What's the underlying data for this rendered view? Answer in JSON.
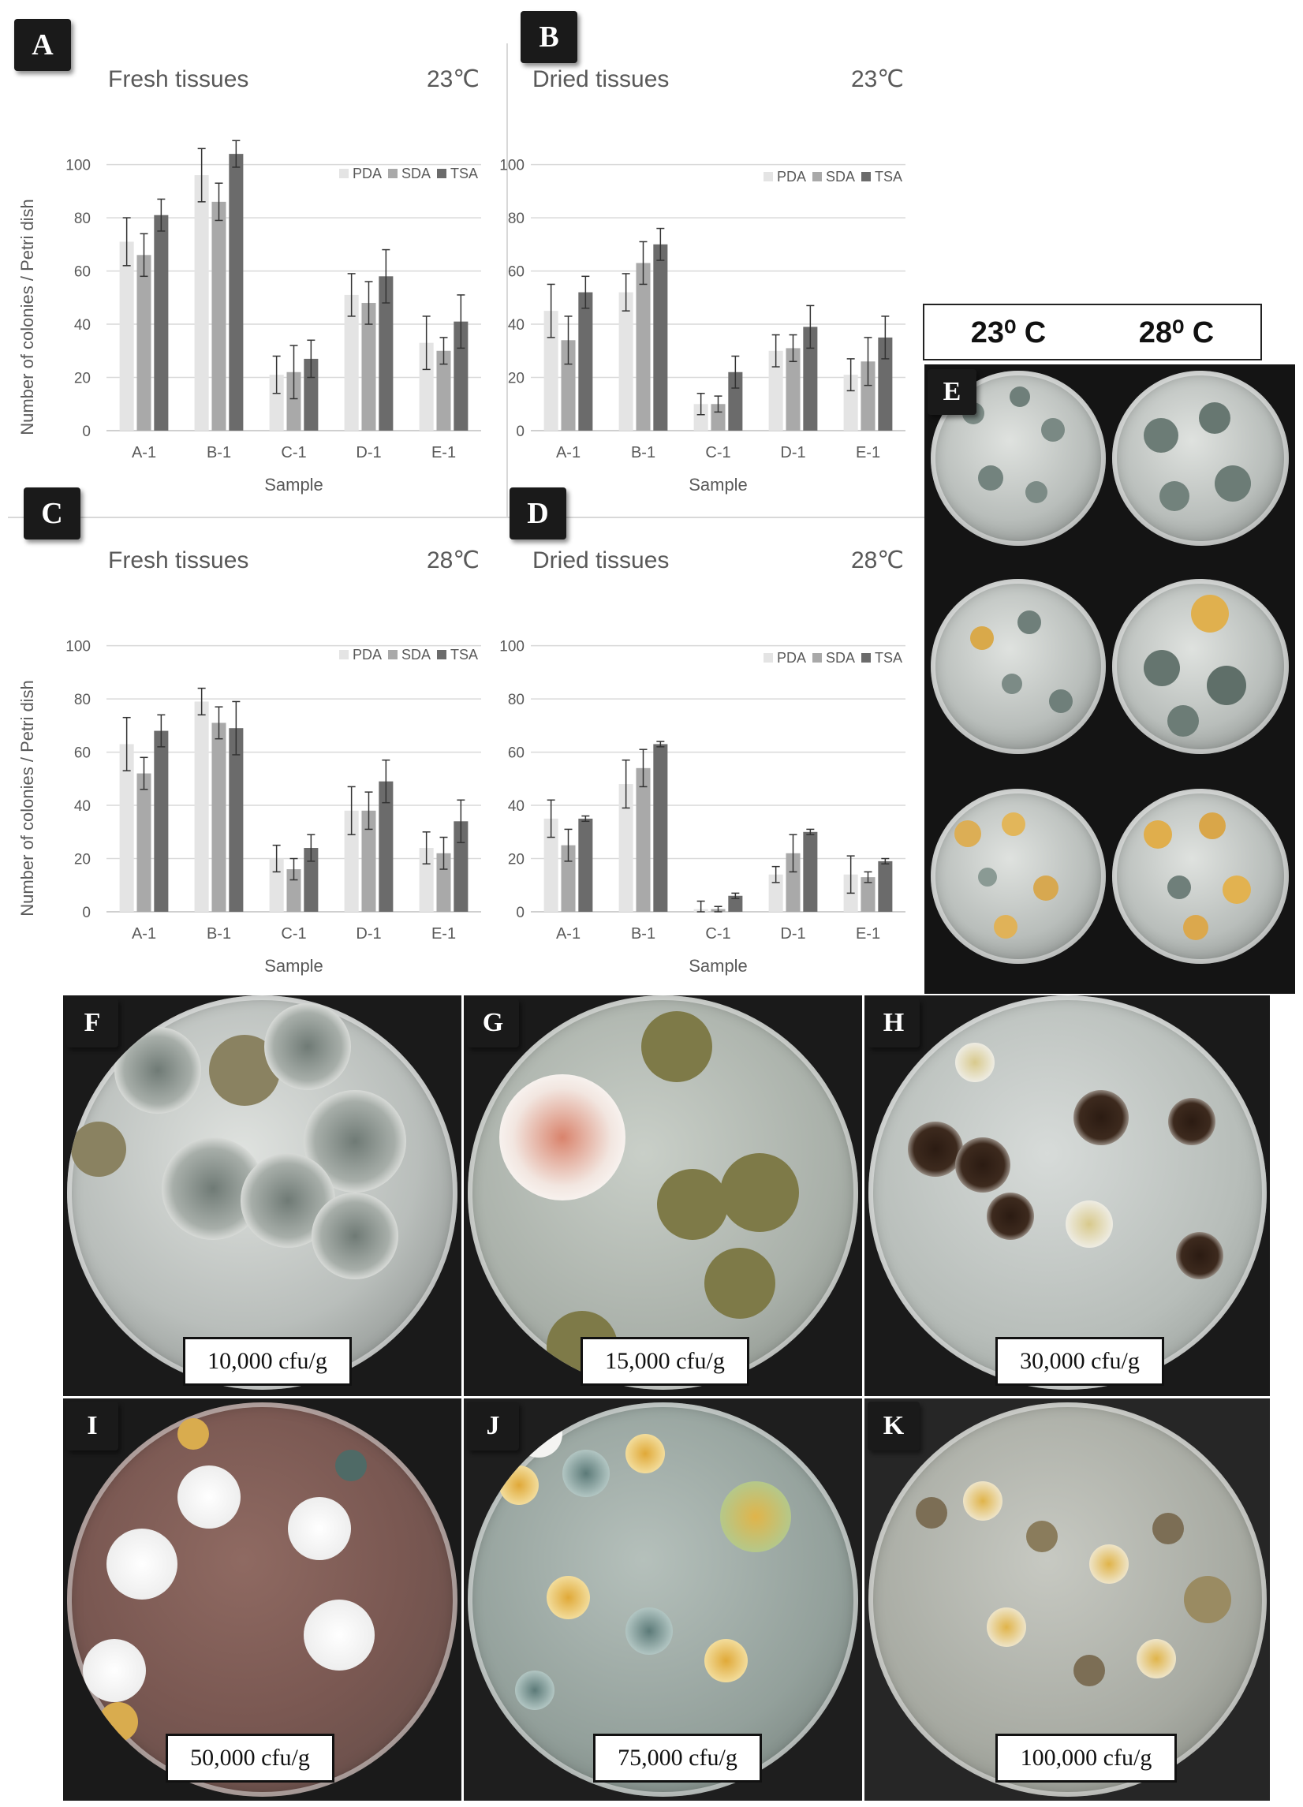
{
  "panel_labels": {
    "a": "A",
    "b": "B",
    "c": "C",
    "d": "D",
    "e": "E",
    "f": "F",
    "g": "G",
    "h": "H",
    "i": "I",
    "j": "J",
    "k": "K"
  },
  "temperature_header": {
    "left": "23⁰ C",
    "right": "28⁰ C"
  },
  "cfu_labels": {
    "f": "10,000 cfu/g",
    "g": "15,000 cfu/g",
    "h": "30,000 cfu/g",
    "i": "50,000 cfu/g",
    "j": "75,000 cfu/g",
    "k": "100,000 cfu/g"
  },
  "colors": {
    "PDA": "#e4e4e4",
    "SDA": "#a9a9a9",
    "TSA": "#6b6b6b",
    "grid": "#d9d9d9",
    "axis_text": "#595959"
  },
  "chart_data": [
    {
      "type": "bar",
      "panel": "A",
      "title": "Fresh tissues",
      "temperature": "23℃",
      "categories": [
        "A-1",
        "B-1",
        "C-1",
        "D-1",
        "E-1"
      ],
      "series": [
        {
          "name": "PDA",
          "values": [
            71,
            96,
            21,
            51,
            33
          ],
          "errors": [
            9,
            10,
            7,
            8,
            10
          ]
        },
        {
          "name": "SDA",
          "values": [
            66,
            86,
            22,
            48,
            30
          ],
          "errors": [
            8,
            7,
            10,
            8,
            5
          ]
        },
        {
          "name": "TSA",
          "values": [
            81,
            104,
            27,
            58,
            41
          ],
          "errors": [
            6,
            5,
            7,
            10,
            10
          ]
        }
      ],
      "xlabel": "Sample",
      "ylabel": "Number of colonies / Petri dish",
      "yticks": [
        0,
        20,
        40,
        60,
        80,
        100
      ],
      "ylim": [
        0,
        115
      ],
      "legend": "top-right",
      "grid": true
    },
    {
      "type": "bar",
      "panel": "B",
      "title": "Dried tissues",
      "temperature": "23℃",
      "categories": [
        "A-1",
        "B-1",
        "C-1",
        "D-1",
        "E-1"
      ],
      "series": [
        {
          "name": "PDA",
          "values": [
            45,
            52,
            10,
            30,
            21
          ],
          "errors": [
            10,
            7,
            4,
            6,
            6
          ]
        },
        {
          "name": "SDA",
          "values": [
            34,
            63,
            10,
            31,
            26
          ],
          "errors": [
            9,
            8,
            3,
            5,
            9
          ]
        },
        {
          "name": "TSA",
          "values": [
            52,
            70,
            22,
            39,
            35
          ],
          "errors": [
            6,
            6,
            6,
            8,
            8
          ]
        }
      ],
      "xlabel": "Sample",
      "ylabel": "",
      "yticks": [
        0,
        20,
        40,
        60,
        80,
        100
      ],
      "ylim": [
        0,
        115
      ],
      "legend": "top-right",
      "grid": true
    },
    {
      "type": "bar",
      "panel": "C",
      "title": "Fresh tissues",
      "temperature": "28℃",
      "categories": [
        "A-1",
        "B-1",
        "C-1",
        "D-1",
        "E-1"
      ],
      "series": [
        {
          "name": "PDA",
          "values": [
            63,
            79,
            20,
            38,
            24
          ],
          "errors": [
            10,
            5,
            5,
            9,
            6
          ]
        },
        {
          "name": "SDA",
          "values": [
            52,
            71,
            16,
            38,
            22
          ],
          "errors": [
            6,
            6,
            4,
            7,
            6
          ]
        },
        {
          "name": "TSA",
          "values": [
            68,
            69,
            24,
            49,
            34
          ],
          "errors": [
            6,
            10,
            5,
            8,
            8
          ]
        }
      ],
      "xlabel": "Sample",
      "ylabel": "Number of colonies / Petri dish",
      "yticks": [
        0,
        20,
        40,
        60,
        80,
        100
      ],
      "ylim": [
        0,
        115
      ],
      "legend": "top-right",
      "grid": true
    },
    {
      "type": "bar",
      "panel": "D",
      "title": "Dried tissues",
      "temperature": "28℃",
      "categories": [
        "A-1",
        "B-1",
        "C-1",
        "D-1",
        "E-1"
      ],
      "series": [
        {
          "name": "PDA",
          "values": [
            35,
            48,
            1,
            14,
            14
          ],
          "errors": [
            7,
            9,
            3,
            3,
            7
          ]
        },
        {
          "name": "SDA",
          "values": [
            25,
            54,
            1,
            22,
            13
          ],
          "errors": [
            6,
            7,
            1,
            7,
            2
          ]
        },
        {
          "name": "TSA",
          "values": [
            35,
            63,
            6,
            30,
            19
          ],
          "errors": [
            1,
            1,
            1,
            1,
            1
          ]
        }
      ],
      "xlabel": "Sample",
      "ylabel": "",
      "yticks": [
        0,
        20,
        40,
        60,
        80,
        100
      ],
      "ylim": [
        0,
        115
      ],
      "legend": "top-right",
      "grid": true
    }
  ]
}
